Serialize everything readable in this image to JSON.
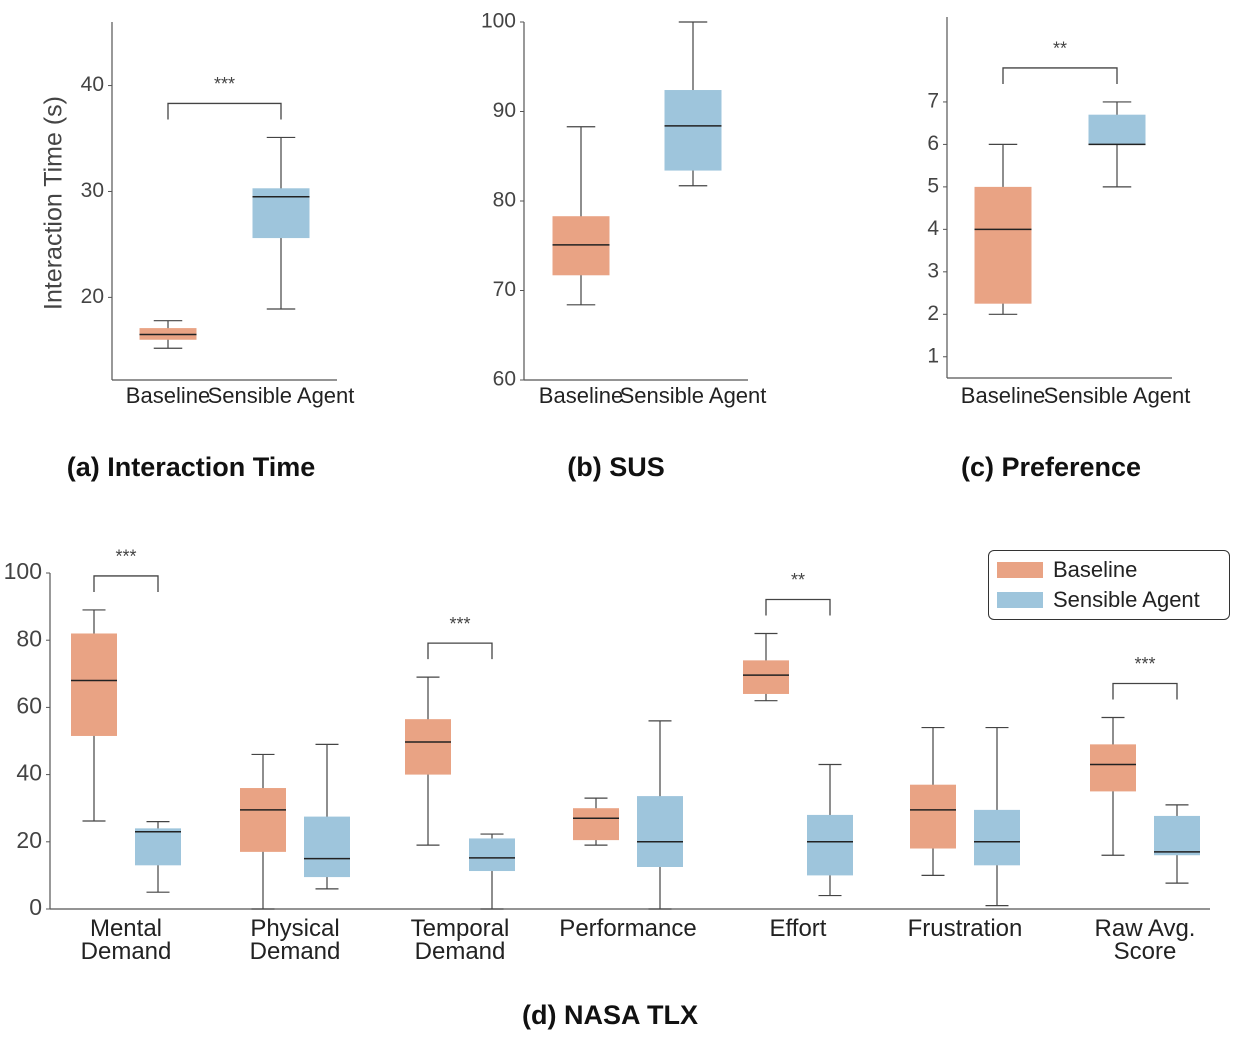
{
  "chart_data": [
    {
      "type": "box",
      "title": "(a) Interaction Time",
      "ylabel": "Interaction Time (s)",
      "categories": [
        "Baseline",
        "Sensible Agent"
      ],
      "colors": [
        "#e9a384",
        "#9ec5dc"
      ],
      "boxes": [
        {
          "min": 15.2,
          "q1": 16.0,
          "median": 16.5,
          "q3": 17.1,
          "max": 17.8
        },
        {
          "min": 18.9,
          "q1": 25.6,
          "median": 29.5,
          "q3": 30.3,
          "max": 35.1
        }
      ],
      "ylim": [
        12.2,
        46
      ],
      "yticks": [
        20,
        30,
        40
      ],
      "annotation": "***"
    },
    {
      "type": "box",
      "title": "(b) SUS",
      "categories": [
        "Baseline",
        "Sensible Agent"
      ],
      "colors": [
        "#e9a384",
        "#9ec5dc"
      ],
      "boxes": [
        {
          "min": 68.4,
          "q1": 71.7,
          "median": 75.1,
          "q3": 78.3,
          "max": 88.3
        },
        {
          "min": 81.7,
          "q1": 83.4,
          "median": 88.4,
          "q3": 92.4,
          "max": 100
        }
      ],
      "ylim": [
        60,
        100
      ],
      "yticks": [
        60,
        70,
        80,
        90,
        100
      ]
    },
    {
      "type": "box",
      "title": "(c) Preference",
      "categories": [
        "Baseline",
        "Sensible Agent"
      ],
      "colors": [
        "#e9a384",
        "#9ec5dc"
      ],
      "boxes": [
        {
          "min": 2.0,
          "q1": 2.25,
          "median": 4.0,
          "q3": 5.0,
          "max": 6.0
        },
        {
          "min": 5.0,
          "q1": 6.0,
          "median": 6.0,
          "q3": 6.7,
          "max": 7.0
        }
      ],
      "ylim": [
        0.5,
        9
      ],
      "yticks": [
        1,
        2,
        3,
        4,
        5,
        6,
        7
      ],
      "annotation": "**"
    },
    {
      "type": "grouped-box",
      "title": "(d) NASA TLX",
      "legend": "upper right",
      "categories": [
        "Mental Demand",
        "Physical Demand",
        "Temporal Demand",
        "Performance",
        "Effort",
        "Frustration",
        "Raw Avg. Score"
      ],
      "series": [
        {
          "name": "Baseline",
          "color": "#e9a384",
          "boxes": [
            {
              "min": 26.2,
              "q1": 51.5,
              "median": 68,
              "q3": 82,
              "max": 89
            },
            {
              "min": 0,
              "q1": 17,
              "median": 29.5,
              "q3": 36,
              "max": 46
            },
            {
              "min": 19,
              "q1": 40,
              "median": 49.7,
              "q3": 56.5,
              "max": 69
            },
            {
              "min": 19,
              "q1": 20.5,
              "median": 27,
              "q3": 30,
              "max": 33
            },
            {
              "min": 62,
              "q1": 64,
              "median": 69.6,
              "q3": 74,
              "max": 82
            },
            {
              "min": 10,
              "q1": 18,
              "median": 29.5,
              "q3": 37,
              "max": 54
            },
            {
              "min": 16,
              "q1": 35,
              "median": 43,
              "q3": 49,
              "max": 57
            }
          ]
        },
        {
          "name": "Sensible Agent",
          "color": "#9ec5dc",
          "boxes": [
            {
              "min": 5,
              "q1": 13,
              "median": 23,
              "q3": 24,
              "max": 26
            },
            {
              "min": 6,
              "q1": 9.5,
              "median": 15,
              "q3": 27.5,
              "max": 49
            },
            {
              "min": 0,
              "q1": 11.3,
              "median": 15.2,
              "q3": 21,
              "max": 22.3
            },
            {
              "min": 0,
              "q1": 12.5,
              "median": 20,
              "q3": 33.6,
              "max": 56
            },
            {
              "min": 4,
              "q1": 10,
              "median": 20,
              "q3": 28,
              "max": 43
            },
            {
              "min": 1,
              "q1": 13,
              "median": 20,
              "q3": 29.5,
              "max": 54
            },
            {
              "min": 7.7,
              "q1": 16,
              "median": 17,
              "q3": 27.7,
              "max": 31
            }
          ]
        }
      ],
      "significance": [
        "***",
        null,
        "***",
        null,
        "**",
        null,
        "***"
      ],
      "ylim": [
        0,
        100
      ],
      "yticks": [
        0,
        20,
        40,
        60,
        80,
        100
      ]
    }
  ]
}
